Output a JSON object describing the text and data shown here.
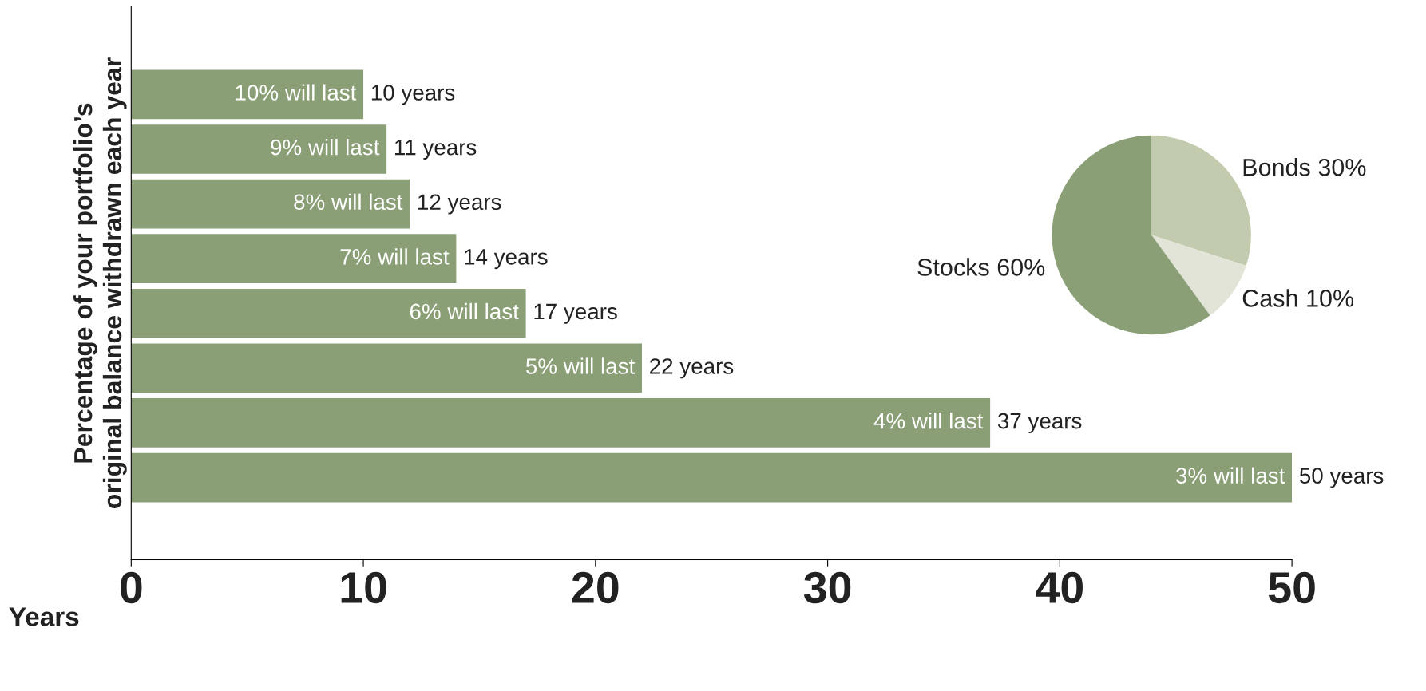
{
  "chart_data": [
    {
      "type": "bar",
      "orientation": "horizontal",
      "xlabel": "Years",
      "ylabel": "Percentage of your portfolio’s\noriginal balance withdrawn each year",
      "categories": [
        "10% will last",
        "9% will last",
        "8% will last",
        "7% will last",
        "6% will last",
        "5% will last",
        "4% will last",
        "3% will last"
      ],
      "values": [
        10,
        11,
        12,
        14,
        17,
        22,
        37,
        50
      ],
      "value_labels": [
        "10 years",
        "11 years",
        "12 years",
        "14 years",
        "17 years",
        "22 years",
        "37 years",
        "50 years"
      ],
      "color": "#8a9f76",
      "xlim": [
        0,
        50
      ],
      "xticks": [
        0,
        10,
        20,
        30,
        40,
        50
      ],
      "grid": false,
      "legend": false
    },
    {
      "type": "pie",
      "categories": [
        "Bonds 30%",
        "Cash 10%",
        "Stocks 60%"
      ],
      "values": [
        30,
        10,
        60
      ],
      "colors": [
        "#c3cbae",
        "#e1e4d6",
        "#8a9f76"
      ],
      "legend": false
    }
  ]
}
